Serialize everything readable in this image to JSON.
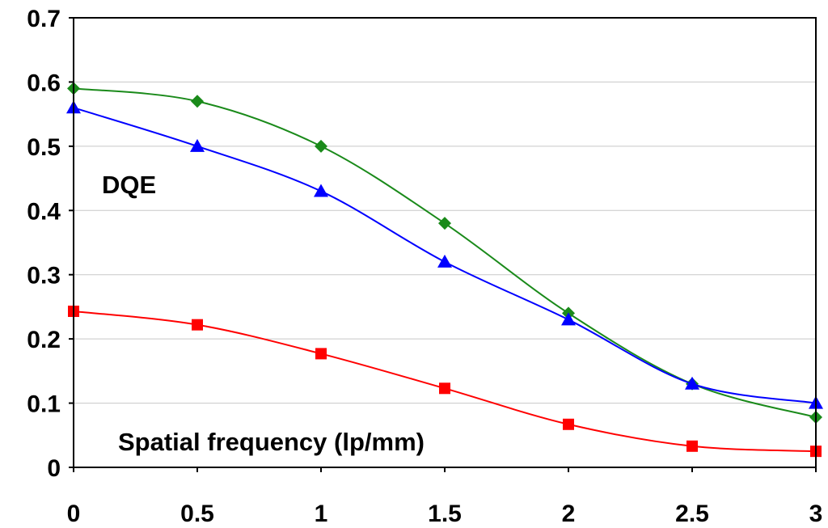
{
  "chart_data": {
    "type": "line",
    "title": "",
    "xlabel": "",
    "ylabel": "",
    "xlim": [
      0,
      3
    ],
    "ylim": [
      0,
      0.7
    ],
    "x_ticks": [
      "0",
      "0.5",
      "1",
      "1.5",
      "2",
      "2.5",
      "3"
    ],
    "y_ticks": [
      "0",
      "0.1",
      "0.2",
      "0.3",
      "0.4",
      "0.5",
      "0.6",
      "0.7"
    ],
    "grid": "horizontal",
    "legend": "none",
    "annotations": {
      "dqe_label": "DQE",
      "freq_label": "Spatial frequency (lp/mm)"
    },
    "series": [
      {
        "color": "#1a8a1a",
        "marker": "diamond",
        "x": [
          0,
          0.5,
          1,
          1.5,
          2,
          2.5,
          3
        ],
        "y": [
          0.59,
          0.57,
          0.5,
          0.38,
          0.24,
          0.13,
          0.078
        ]
      },
      {
        "color": "#0000ff",
        "marker": "triangle",
        "x": [
          0,
          0.5,
          1,
          1.5,
          2,
          2.5,
          3
        ],
        "y": [
          0.56,
          0.5,
          0.43,
          0.32,
          0.23,
          0.13,
          0.1
        ]
      },
      {
        "color": "#ff0000",
        "marker": "square",
        "x": [
          0,
          0.5,
          1,
          1.5,
          2,
          2.5,
          3
        ],
        "y": [
          0.243,
          0.222,
          0.177,
          0.123,
          0.067,
          0.033,
          0.025
        ]
      }
    ]
  }
}
